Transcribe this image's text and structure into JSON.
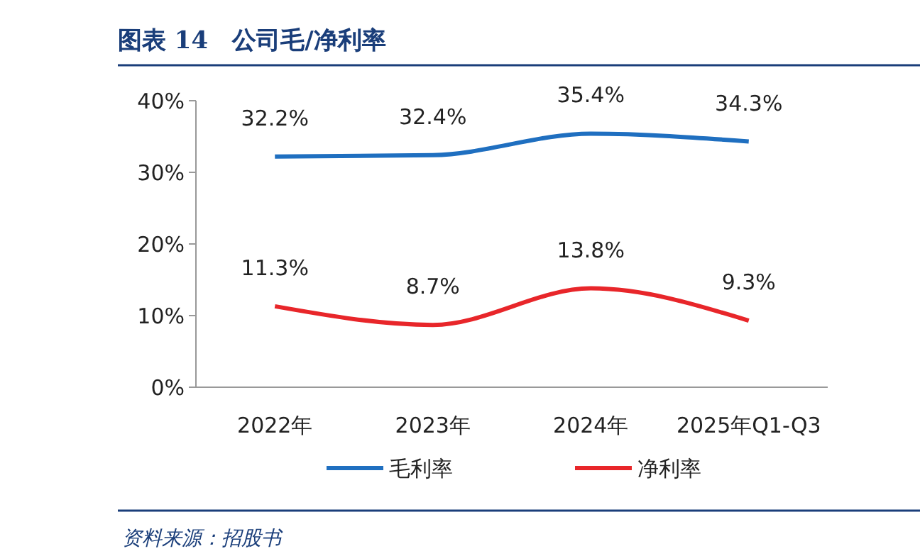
{
  "chart_data": {
    "type": "line",
    "title": "图表 14　公司毛/净利率",
    "categories": [
      "2022年",
      "2023年",
      "2024年",
      "2025年Q1-Q3"
    ],
    "series": [
      {
        "name": "毛利率",
        "color": "#1f6fc0",
        "values": [
          32.2,
          32.4,
          35.4,
          34.3
        ],
        "value_labels": [
          "32.2%",
          "32.4%",
          "35.4%",
          "34.3%"
        ]
      },
      {
        "name": "净利率",
        "color": "#e8262a",
        "values": [
          11.3,
          8.7,
          13.8,
          9.3
        ],
        "value_labels": [
          "11.3%",
          "8.7%",
          "13.8%",
          "9.3%"
        ]
      }
    ],
    "ylim": [
      0,
      40
    ],
    "yticks": [
      {
        "value": 0,
        "label": "0%"
      },
      {
        "value": 10,
        "label": "10%"
      },
      {
        "value": 20,
        "label": "20%"
      },
      {
        "value": 30,
        "label": "30%"
      },
      {
        "value": 40,
        "label": "40%"
      }
    ],
    "grid": false,
    "legend": "bottom",
    "marker": "none",
    "line_style": "solid",
    "annotations": [
      "资料来源：招股书"
    ]
  }
}
